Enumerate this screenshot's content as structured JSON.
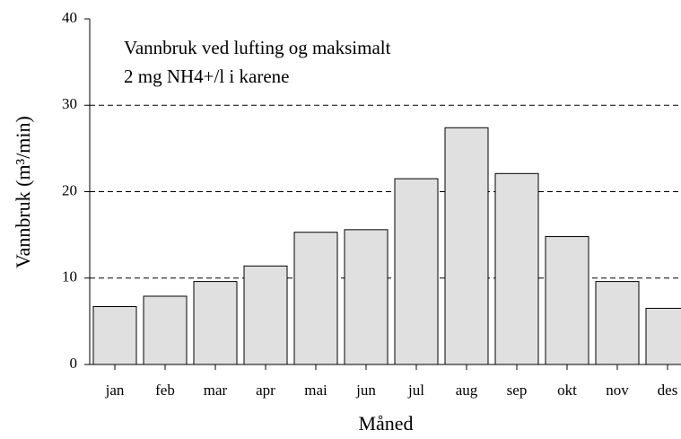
{
  "chart_data": {
    "type": "bar",
    "annotations": [
      "Vannbruk ved lufting og maksimalt",
      "2 mg NH4+/l i karene"
    ],
    "y_label": "Vannbruk  (m³/min)",
    "x_label": "Måned",
    "categories": [
      "jan",
      "feb",
      "mar",
      "apr",
      "mai",
      "jun",
      "jul",
      "aug",
      "sep",
      "okt",
      "nov",
      "des"
    ],
    "values": [
      6.7,
      7.9,
      9.6,
      11.4,
      15.3,
      15.6,
      21.5,
      27.4,
      22.1,
      14.8,
      9.6,
      6.5
    ],
    "color": "#e0e0e0",
    "ylim": [
      0,
      40
    ],
    "yticks": [
      0,
      10,
      20,
      30,
      40
    ],
    "grid": true
  }
}
